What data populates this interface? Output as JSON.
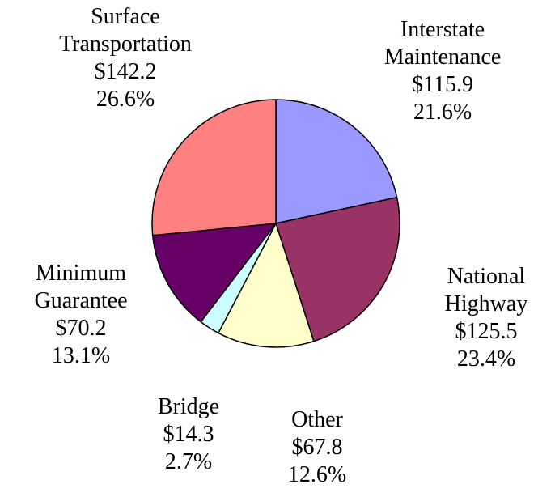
{
  "chart_data": {
    "type": "pie",
    "categories": [
      "Interstate Maintenance",
      "National Highway",
      "Other",
      "Bridge",
      "Minimum Guarantee",
      "Surface Transportation"
    ],
    "values": [
      115.9,
      125.5,
      67.8,
      14.3,
      70.2,
      142.2
    ],
    "value_labels": [
      "$115.9",
      "$125.5",
      "$67.8",
      "$14.3",
      "$70.2",
      "$142.2"
    ],
    "percent_labels": [
      "21.6%",
      "23.4%",
      "12.6%",
      "2.7%",
      "13.1%",
      "26.6%"
    ],
    "colors": [
      "#9999ff",
      "#993366",
      "#ffffcc",
      "#ccffff",
      "#660066",
      "#ff8080"
    ]
  }
}
